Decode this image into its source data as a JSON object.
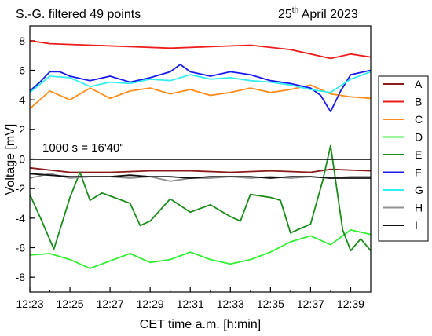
{
  "chart_data": {
    "type": "line",
    "title_left": "S.-G. filtered 49 points",
    "date_day": "25",
    "date_sup": "th",
    "date_rest": " April 2023",
    "annotation": "1000 s = 16'40\"",
    "xlabel": "CET time a.m. [h:min]",
    "ylabel": "Voltage [mV]",
    "xlim": [
      "12:23",
      "12:40"
    ],
    "ylim": [
      -9,
      9
    ],
    "x_ticks": [
      "12:23",
      "12:25",
      "12:27",
      "12:29",
      "12:31",
      "12:33",
      "12:35",
      "12:37",
      "12:39"
    ],
    "y_ticks": [
      "8",
      "6",
      "4",
      "2",
      "0",
      "-2",
      "-4",
      "-6",
      "-8"
    ],
    "y_tick_values": [
      8,
      6,
      4,
      2,
      0,
      -2,
      -4,
      -6,
      -8
    ],
    "reference_line_y": 0,
    "legend_position": "right",
    "series": [
      {
        "name": "A",
        "color": "#8b1a1a",
        "x": [
          "12:23",
          "12:25",
          "12:27",
          "12:29",
          "12:31",
          "12:33",
          "12:35",
          "12:37",
          "12:38",
          "12:40"
        ],
        "values": [
          -0.6,
          -0.9,
          -0.9,
          -0.8,
          -0.8,
          -0.9,
          -0.8,
          -0.9,
          -0.7,
          -0.8
        ]
      },
      {
        "name": "B",
        "color": "#ee1c1c",
        "x": [
          "12:23",
          "12:24",
          "12:26",
          "12:28",
          "12:30",
          "12:32",
          "12:34",
          "12:36",
          "12:38",
          "12:39",
          "12:40"
        ],
        "values": [
          8.0,
          7.8,
          7.7,
          7.6,
          7.5,
          7.6,
          7.7,
          7.4,
          6.8,
          7.1,
          6.9
        ]
      },
      {
        "name": "C",
        "color": "#ff8c1a",
        "x": [
          "12:23",
          "12:24",
          "12:25",
          "12:26",
          "12:27",
          "12:28",
          "12:29",
          "12:30",
          "12:31",
          "12:32",
          "12:33",
          "12:34",
          "12:35",
          "12:36",
          "12:37",
          "12:38",
          "12:39",
          "12:40"
        ],
        "values": [
          3.4,
          4.6,
          4.0,
          4.8,
          4.1,
          4.6,
          4.8,
          4.4,
          4.7,
          4.3,
          4.5,
          4.8,
          4.5,
          4.7,
          5.0,
          4.4,
          4.2,
          4.1
        ]
      },
      {
        "name": "D",
        "color": "#33ee33",
        "x": [
          "12:23",
          "12:24",
          "12:25",
          "12:26",
          "12:27",
          "12:28",
          "12:29",
          "12:30",
          "12:31",
          "12:32",
          "12:33",
          "12:34",
          "12:35",
          "12:36",
          "12:37",
          "12:38",
          "12:39",
          "12:40"
        ],
        "values": [
          -6.5,
          -6.4,
          -6.8,
          -7.4,
          -6.9,
          -6.4,
          -7.0,
          -6.8,
          -6.3,
          -6.8,
          -7.1,
          -6.8,
          -6.3,
          -5.6,
          -5.2,
          -5.8,
          -4.8,
          -5.1
        ]
      },
      {
        "name": "E",
        "color": "#1a8c1a",
        "x": [
          "12:23",
          "12:23.6",
          "12:24.2",
          "12:25",
          "12:25.5",
          "12:26",
          "12:26.6",
          "12:27",
          "12:28",
          "12:28.5",
          "12:29",
          "12:30",
          "12:31",
          "12:32",
          "12:33",
          "12:33.5",
          "12:34",
          "12:35",
          "12:35.5",
          "12:36",
          "12:37",
          "12:37.6",
          "12:38",
          "12:38.6",
          "12:39",
          "12:39.5",
          "12:40"
        ],
        "values": [
          -2.4,
          -4.2,
          -6.1,
          -2.6,
          -0.9,
          -2.8,
          -2.3,
          -2.5,
          -3.0,
          -4.5,
          -4.2,
          -2.7,
          -3.6,
          -3.1,
          -3.9,
          -4.2,
          -2.4,
          -2.6,
          -2.8,
          -5.0,
          -4.4,
          -1.5,
          0.9,
          -4.8,
          -6.2,
          -5.4,
          -6.2
        ]
      },
      {
        "name": "F",
        "color": "#1a1aee",
        "x": [
          "12:23",
          "12:23.5",
          "12:24",
          "12:24.5",
          "12:25",
          "12:26",
          "12:27",
          "12:28",
          "12:29",
          "12:30",
          "12:30.5",
          "12:31",
          "12:32",
          "12:33",
          "12:34",
          "12:35",
          "12:36",
          "12:37",
          "12:37.5",
          "12:38",
          "12:38.5",
          "12:39",
          "12:40"
        ],
        "values": [
          4.6,
          5.2,
          5.9,
          5.9,
          5.6,
          5.3,
          5.6,
          5.2,
          5.5,
          5.9,
          6.4,
          5.9,
          5.6,
          5.9,
          5.7,
          5.3,
          5.1,
          4.8,
          4.3,
          3.2,
          4.6,
          5.7,
          6.0
        ]
      },
      {
        "name": "G",
        "color": "#33eeee",
        "x": [
          "12:23",
          "12:24",
          "12:25",
          "12:26",
          "12:27",
          "12:28",
          "12:29",
          "12:30",
          "12:31",
          "12:32",
          "12:33",
          "12:34",
          "12:35",
          "12:36",
          "12:37",
          "12:38",
          "12:39",
          "12:40"
        ],
        "values": [
          4.5,
          5.6,
          5.5,
          4.9,
          5.2,
          5.1,
          5.4,
          5.3,
          5.7,
          5.4,
          5.5,
          5.3,
          5.2,
          5.0,
          4.7,
          4.5,
          5.4,
          5.9
        ]
      },
      {
        "name": "H",
        "color": "#909090",
        "x": [
          "12:23",
          "12:24",
          "12:25",
          "12:26",
          "12:27",
          "12:28",
          "12:29",
          "12:30",
          "12:31",
          "12:32",
          "12:33",
          "12:34",
          "12:35",
          "12:36",
          "12:37",
          "12:38",
          "12:39",
          "12:40"
        ],
        "values": [
          -1.3,
          -1.0,
          -1.3,
          -1.2,
          -1.2,
          -1.3,
          -1.2,
          -1.5,
          -1.3,
          -1.3,
          -1.2,
          -1.3,
          -1.2,
          -1.3,
          -1.2,
          -1.3,
          -1.2,
          -1.2
        ]
      },
      {
        "name": "I",
        "color": "#111111",
        "x": [
          "12:23",
          "12:24",
          "12:25",
          "12:26",
          "12:27",
          "12:28",
          "12:29",
          "12:30",
          "12:31",
          "12:32",
          "12:33",
          "12:34",
          "12:35",
          "12:36",
          "12:37",
          "12:38",
          "12:39",
          "12:40"
        ],
        "values": [
          -1.0,
          -1.1,
          -1.2,
          -1.2,
          -1.2,
          -1.1,
          -1.2,
          -1.2,
          -1.3,
          -1.2,
          -1.2,
          -1.2,
          -1.3,
          -1.2,
          -1.2,
          -1.3,
          -1.3,
          -1.3
        ]
      }
    ]
  }
}
